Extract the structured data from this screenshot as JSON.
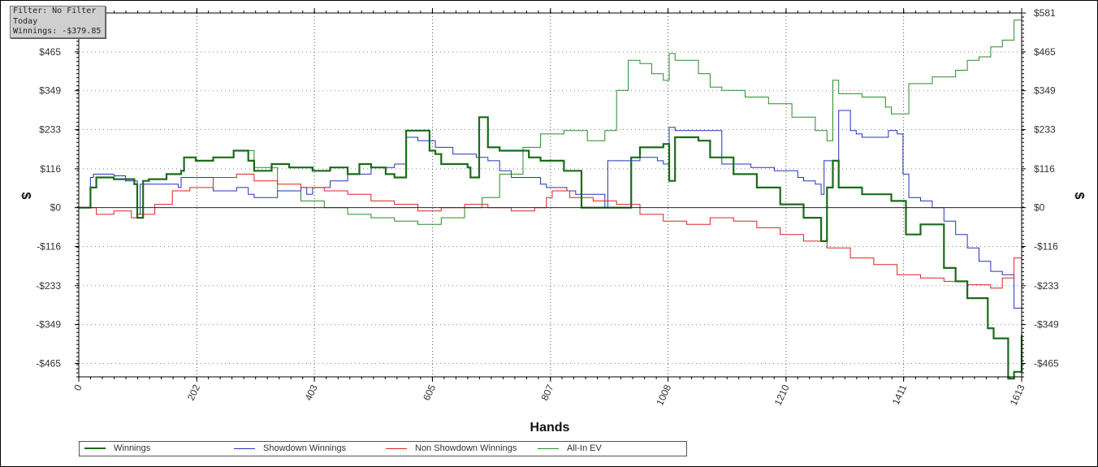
{
  "info_box": {
    "filter": "Filter: No Filter",
    "period": "Today",
    "winnings": "Winnings: -$379.85"
  },
  "chart_data": {
    "type": "line",
    "xlabel": "Hands",
    "ylabel": "$",
    "xlim": [
      0,
      1613
    ],
    "ylim": [
      -505,
      581
    ],
    "x_ticks": [
      "0",
      "202",
      "403",
      "605",
      "807",
      "1008",
      "1210",
      "1411",
      "1613"
    ],
    "y_ticks": [
      {
        "value": 581,
        "label": "$581"
      },
      {
        "value": 465,
        "label": "$465"
      },
      {
        "value": 349,
        "label": "$349"
      },
      {
        "value": 233,
        "label": "$233"
      },
      {
        "value": 116,
        "label": "$116"
      },
      {
        "value": 0,
        "label": "$0"
      },
      {
        "value": -116,
        "label": "-$116"
      },
      {
        "value": -233,
        "label": "-$233"
      },
      {
        "value": -349,
        "label": "-$349"
      },
      {
        "value": -465,
        "label": "-$465"
      }
    ],
    "grid": true,
    "legend_position": "bottom",
    "series": [
      {
        "name": "Winnings",
        "color": "#1a6b1a",
        "x": [
          0,
          20,
          30,
          60,
          95,
          100,
          110,
          120,
          150,
          175,
          180,
          200,
          230,
          265,
          290,
          300,
          330,
          360,
          400,
          430,
          460,
          480,
          500,
          525,
          540,
          560,
          600,
          610,
          620,
          665,
          670,
          685,
          700,
          720,
          770,
          790,
          830,
          860,
          900,
          945,
          960,
          1000,
          1010,
          1020,
          1060,
          1080,
          1120,
          1160,
          1200,
          1240,
          1270,
          1280,
          1290,
          1300,
          1340,
          1390,
          1410,
          1415,
          1440,
          1480,
          1500,
          1520,
          1555,
          1565,
          1580,
          1590,
          1600,
          1613
        ],
        "y": [
          0,
          60,
          90,
          85,
          70,
          -30,
          80,
          85,
          100,
          110,
          150,
          140,
          150,
          170,
          140,
          110,
          130,
          120,
          110,
          120,
          100,
          130,
          120,
          100,
          90,
          230,
          170,
          160,
          130,
          120,
          90,
          270,
          180,
          170,
          150,
          140,
          110,
          0,
          0,
          150,
          180,
          190,
          80,
          210,
          200,
          150,
          100,
          60,
          10,
          -30,
          -100,
          60,
          140,
          60,
          40,
          20,
          20,
          -80,
          -50,
          -180,
          -220,
          -270,
          -360,
          -390,
          -390,
          -510,
          -490,
          -380
        ]
      },
      {
        "name": "Showdown Winnings",
        "color": "#2233bb",
        "x": [
          0,
          20,
          25,
          60,
          80,
          100,
          105,
          120,
          170,
          175,
          180,
          230,
          270,
          290,
          300,
          340,
          380,
          390,
          400,
          430,
          460,
          500,
          540,
          560,
          580,
          610,
          640,
          680,
          700,
          720,
          740,
          790,
          800,
          835,
          850,
          900,
          905,
          960,
          990,
          1000,
          1010,
          1020,
          1080,
          1100,
          1150,
          1190,
          1230,
          1240,
          1260,
          1270,
          1275,
          1300,
          1320,
          1330,
          1340,
          1385,
          1400,
          1410,
          1420,
          1440,
          1460,
          1480,
          1500,
          1520,
          1540,
          1560,
          1580,
          1600,
          1613
        ],
        "y": [
          0,
          90,
          100,
          95,
          80,
          -20,
          70,
          70,
          60,
          90,
          90,
          50,
          60,
          40,
          30,
          50,
          60,
          40,
          60,
          80,
          100,
          120,
          130,
          210,
          200,
          180,
          160,
          150,
          140,
          110,
          90,
          70,
          60,
          50,
          40,
          0,
          140,
          150,
          140,
          130,
          240,
          230,
          230,
          130,
          120,
          110,
          90,
          80,
          70,
          40,
          140,
          290,
          230,
          220,
          210,
          230,
          220,
          100,
          30,
          20,
          0,
          -40,
          -80,
          -120,
          -160,
          -190,
          -200,
          -300,
          -260
        ]
      },
      {
        "name": "Non Showdown Winnings",
        "color": "#dd2222",
        "x": [
          0,
          30,
          60,
          90,
          100,
          130,
          160,
          190,
          230,
          270,
          300,
          340,
          380,
          420,
          460,
          500,
          540,
          580,
          620,
          660,
          700,
          740,
          780,
          800,
          810,
          840,
          880,
          920,
          960,
          1000,
          1040,
          1080,
          1120,
          1160,
          1200,
          1240,
          1280,
          1320,
          1360,
          1400,
          1440,
          1480,
          1520,
          1560,
          1580,
          1600,
          1613
        ],
        "y": [
          0,
          -20,
          -10,
          -30,
          -20,
          10,
          50,
          60,
          90,
          100,
          80,
          70,
          60,
          50,
          40,
          20,
          10,
          -10,
          0,
          10,
          0,
          -10,
          0,
          30,
          50,
          30,
          20,
          10,
          -20,
          -40,
          -50,
          -30,
          -40,
          -60,
          -80,
          -100,
          -120,
          -150,
          -170,
          -200,
          -210,
          -220,
          -230,
          -240,
          -210,
          -150,
          -120
        ]
      },
      {
        "name": "All-In EV",
        "color": "#2a8a2a",
        "x": [
          0,
          20,
          30,
          60,
          95,
          100,
          110,
          120,
          150,
          175,
          180,
          200,
          230,
          265,
          300,
          340,
          380,
          420,
          460,
          500,
          540,
          580,
          620,
          660,
          690,
          720,
          760,
          790,
          830,
          870,
          900,
          920,
          940,
          960,
          980,
          1000,
          1010,
          1020,
          1060,
          1080,
          1100,
          1140,
          1180,
          1220,
          1260,
          1280,
          1290,
          1300,
          1340,
          1380,
          1390,
          1420,
          1460,
          1500,
          1520,
          1540,
          1560,
          1580,
          1600,
          1613
        ],
        "y": [
          0,
          60,
          90,
          85,
          70,
          -30,
          80,
          85,
          100,
          110,
          150,
          140,
          150,
          170,
          120,
          50,
          20,
          0,
          -20,
          -30,
          -40,
          -50,
          -30,
          0,
          30,
          100,
          180,
          220,
          230,
          200,
          230,
          350,
          440,
          430,
          400,
          380,
          460,
          440,
          400,
          360,
          350,
          330,
          310,
          270,
          230,
          200,
          380,
          340,
          330,
          300,
          280,
          370,
          390,
          410,
          440,
          450,
          480,
          500,
          560,
          570
        ]
      }
    ]
  }
}
